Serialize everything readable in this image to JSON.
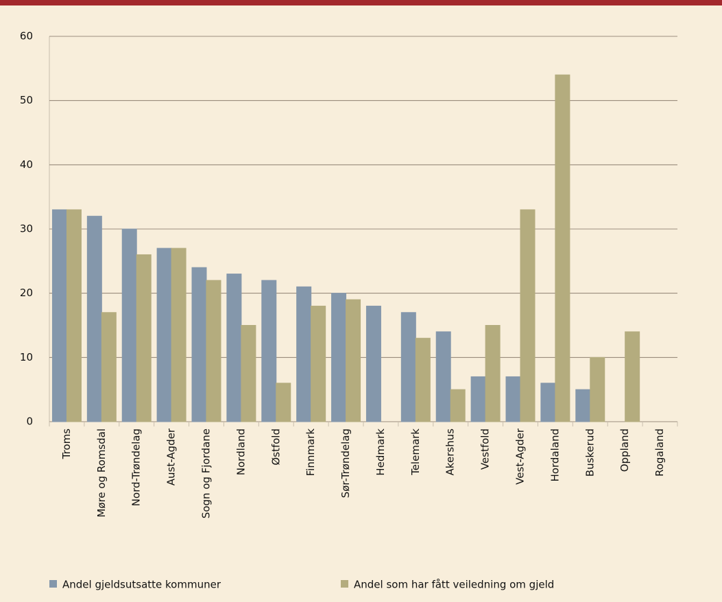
{
  "chart_data": {
    "type": "bar",
    "categories": [
      "Troms",
      "Møre og Romsdal",
      "Nord-Trøndelag",
      "Aust-Agder",
      "Sogn og Fjordane",
      "Nordland",
      "Østfold",
      "Finnmark",
      "Sør-Trøndelag",
      "Hedmark",
      "Telemark",
      "Akershus",
      "Vestfold",
      "Vest-Agder",
      "Hordaland",
      "Buskerud",
      "Oppland",
      "Rogaland"
    ],
    "series": [
      {
        "name": "Andel gjeldsutsatte kommuner",
        "color": "#8497ab",
        "values": [
          33,
          32,
          30,
          27,
          24,
          23,
          22,
          21,
          20,
          18,
          17,
          14,
          7,
          7,
          6,
          5,
          0,
          0
        ]
      },
      {
        "name": "Andel som har fått veiledning om gjeld",
        "color": "#b4ac7e",
        "values": [
          33,
          17,
          26,
          27,
          22,
          15,
          6,
          18,
          19,
          0,
          13,
          5,
          15,
          33,
          54,
          10,
          14,
          0
        ]
      }
    ],
    "ylim": [
      0,
      60
    ],
    "yticks": [
      0,
      10,
      20,
      30,
      40,
      50,
      60
    ],
    "grid": true
  }
}
